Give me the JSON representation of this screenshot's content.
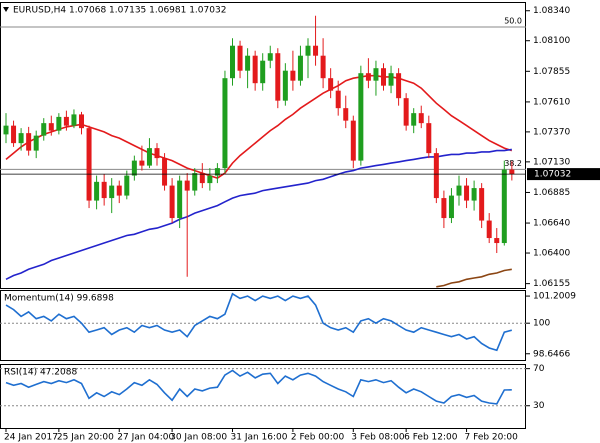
{
  "chart_data": [
    {
      "type": "candlestick",
      "title": "EURUSD,H4 1.07068 1.07135 1.06981 1.07032",
      "categories": [
        "24 Jan 2017",
        null,
        null,
        null,
        null,
        null,
        null,
        "25 Jan 20:00",
        null,
        null,
        null,
        null,
        null,
        null,
        null,
        "27 Jan 04:00",
        null,
        null,
        null,
        null,
        null,
        null,
        "30 Jan 08:00",
        null,
        null,
        null,
        null,
        null,
        null,
        null,
        "31 Jan 16:00",
        null,
        null,
        null,
        null,
        null,
        null,
        null,
        "2 Feb 00:00",
        null,
        null,
        null,
        null,
        null,
        null,
        null,
        "3 Feb 08:00",
        null,
        null,
        null,
        null,
        null,
        null,
        "6 Feb 12:00",
        null,
        null,
        null,
        null,
        null,
        null,
        null,
        "7 Feb 20:00",
        null,
        null,
        null,
        null,
        null,
        null
      ],
      "open": [
        1.0735,
        1.0742,
        1.0728,
        1.0736,
        1.0722,
        1.0734,
        1.0744,
        1.0738,
        1.0749,
        1.0742,
        1.0751,
        1.074,
        1.0682,
        1.0697,
        1.0684,
        1.0694,
        1.0686,
        1.0702,
        1.0714,
        1.071,
        1.0724,
        1.0716,
        1.0694,
        1.0668,
        1.0698,
        1.069,
        1.0704,
        1.0696,
        1.0702,
        1.0708,
        1.078,
        1.0806,
        1.0786,
        1.0798,
        1.0776,
        1.0794,
        1.08,
        1.0762,
        1.0786,
        1.0778,
        1.0798,
        1.0806,
        1.0798,
        1.078,
        1.077,
        1.0756,
        1.0746,
        1.0714,
        1.0784,
        1.0778,
        1.0788,
        1.0774,
        1.0784,
        1.0764,
        1.0742,
        1.0752,
        1.0744,
        1.072,
        1.0684,
        1.0668,
        1.0686,
        1.0694,
        1.0682,
        1.0692,
        1.0666,
        1.0652,
        1.0648,
        1.07068
      ],
      "high": [
        1.0752,
        1.0746,
        1.074,
        1.0741,
        1.0738,
        1.0748,
        1.075,
        1.0752,
        1.0754,
        1.0755,
        1.0753,
        1.0742,
        1.0702,
        1.0703,
        1.07,
        1.0698,
        1.0706,
        1.0718,
        1.0726,
        1.0732,
        1.0728,
        1.072,
        1.07,
        1.0702,
        1.0704,
        1.0708,
        1.0712,
        1.0708,
        1.0712,
        1.0786,
        1.0812,
        1.081,
        1.0804,
        1.0802,
        1.08,
        1.0806,
        1.0804,
        1.0792,
        1.0802,
        1.0806,
        1.0812,
        1.083,
        1.0812,
        1.0788,
        1.0778,
        1.0766,
        1.075,
        1.079,
        1.0796,
        1.0794,
        1.0792,
        1.079,
        1.0788,
        1.0768,
        1.0756,
        1.0758,
        1.075,
        1.0724,
        1.069,
        1.0692,
        1.0702,
        1.07,
        1.0698,
        1.0696,
        1.0672,
        1.066,
        1.0714,
        1.07135
      ],
      "low": [
        1.0728,
        1.0725,
        1.0722,
        1.0718,
        1.0716,
        1.073,
        1.0734,
        1.0735,
        1.0738,
        1.074,
        1.0735,
        1.0676,
        1.0675,
        1.0678,
        1.0672,
        1.068,
        1.0683,
        1.0698,
        1.0706,
        1.0708,
        1.071,
        1.069,
        1.0664,
        1.066,
        1.0621,
        1.0686,
        1.0692,
        1.069,
        1.0696,
        1.0704,
        1.0774,
        1.078,
        1.0772,
        1.077,
        1.077,
        1.0788,
        1.0756,
        1.0758,
        1.077,
        1.0774,
        1.078,
        1.079,
        1.0772,
        1.0764,
        1.075,
        1.074,
        1.0708,
        1.071,
        1.0772,
        1.0766,
        1.077,
        1.0768,
        1.0758,
        1.0738,
        1.0736,
        1.074,
        1.0716,
        1.068,
        1.066,
        1.0664,
        1.0678,
        1.0676,
        1.0674,
        1.066,
        1.0648,
        1.064,
        1.0646,
        1.06981
      ],
      "close": [
        1.0742,
        1.0728,
        1.0736,
        1.0722,
        1.0734,
        1.0744,
        1.0738,
        1.0749,
        1.0742,
        1.0751,
        1.074,
        1.0682,
        1.0697,
        1.0684,
        1.0694,
        1.0686,
        1.0702,
        1.0714,
        1.071,
        1.0724,
        1.0716,
        1.0694,
        1.0668,
        1.0698,
        1.069,
        1.0704,
        1.0696,
        1.0702,
        1.0708,
        1.078,
        1.0806,
        1.0786,
        1.0798,
        1.0776,
        1.0794,
        1.08,
        1.0762,
        1.0786,
        1.0778,
        1.0798,
        1.0806,
        1.0798,
        1.078,
        1.077,
        1.0756,
        1.0746,
        1.0714,
        1.0784,
        1.0778,
        1.0788,
        1.0774,
        1.0784,
        1.0764,
        1.0742,
        1.0752,
        1.0744,
        1.072,
        1.0684,
        1.0668,
        1.0686,
        1.0694,
        1.0682,
        1.0692,
        1.0666,
        1.0652,
        1.0648,
        1.07068,
        1.07032
      ],
      "up_color": "#1f9e1f",
      "down_color": "#e31a1c",
      "series": [
        {
          "color": "#e31a1c",
          "values": [
            1.0715,
            1.072,
            1.0725,
            1.0729,
            1.0732,
            1.0735,
            1.0737,
            1.0739,
            1.0741,
            1.0742,
            1.0743,
            1.0741,
            1.0739,
            1.0737,
            1.0734,
            1.0732,
            1.0729,
            1.0726,
            1.0723,
            1.072,
            1.0718,
            1.0716,
            1.0714,
            1.0711,
            1.0708,
            1.0706,
            1.0704,
            1.0702,
            1.07,
            1.0704,
            1.0712,
            1.0718,
            1.0723,
            1.0728,
            1.0733,
            1.0738,
            1.0742,
            1.0747,
            1.0751,
            1.0756,
            1.076,
            1.0764,
            1.0768,
            1.0771,
            1.0774,
            1.0778,
            1.078,
            1.0781,
            1.0782,
            1.0782,
            1.0781,
            1.0781,
            1.078,
            1.0778,
            1.0776,
            1.0772,
            1.0766,
            1.076,
            1.0755,
            1.075,
            1.0746,
            1.0742,
            1.0738,
            1.0734,
            1.073,
            1.0727,
            1.0724,
            1.0722
          ]
        },
        {
          "color": "#2323cc",
          "values": [
            1.0619,
            1.0622,
            1.0624,
            1.0627,
            1.0629,
            1.0631,
            1.0634,
            1.0636,
            1.0638,
            1.064,
            1.0642,
            1.0644,
            1.0646,
            1.0648,
            1.065,
            1.0652,
            1.0654,
            1.0655,
            1.0657,
            1.0659,
            1.066,
            1.0662,
            1.0664,
            1.0667,
            1.0669,
            1.0672,
            1.0674,
            1.0676,
            1.0678,
            1.0681,
            1.0684,
            1.0686,
            1.0687,
            1.0688,
            1.069,
            1.0691,
            1.0692,
            1.0693,
            1.0694,
            1.0695,
            1.0696,
            1.0698,
            1.0699,
            1.0701,
            1.0703,
            1.0705,
            1.0706,
            1.0708,
            1.0709,
            1.071,
            1.0711,
            1.0712,
            1.0713,
            1.0714,
            1.0715,
            1.0716,
            1.0717,
            1.0717,
            1.0718,
            1.0719,
            1.0719,
            1.072,
            1.072,
            1.0721,
            1.0721,
            1.0722,
            1.0722,
            1.0723
          ]
        },
        {
          "color": "#8b4513",
          "values": [
            null,
            null,
            null,
            null,
            null,
            null,
            null,
            null,
            null,
            null,
            null,
            null,
            null,
            null,
            null,
            null,
            null,
            null,
            null,
            null,
            null,
            null,
            null,
            null,
            null,
            null,
            null,
            null,
            null,
            null,
            null,
            null,
            null,
            null,
            null,
            null,
            null,
            null,
            null,
            null,
            null,
            null,
            null,
            null,
            null,
            null,
            null,
            null,
            null,
            null,
            null,
            null,
            null,
            null,
            null,
            null,
            null,
            1.0613,
            1.0614,
            1.0616,
            1.0617,
            1.0619,
            1.062,
            1.0621,
            1.0623,
            1.0624,
            1.0626,
            1.0627
          ]
        }
      ],
      "levels": [
        {
          "value": 1.0821,
          "label": "50.0"
        },
        {
          "value": 1.0707,
          "label": "38.2"
        }
      ],
      "last_price": 1.07032,
      "ylim": [
        1.0612,
        1.0841
      ],
      "yticks": [
        {
          "value": 1.0834,
          "label": "1.08340"
        },
        {
          "value": 1.081,
          "label": "1.08100"
        },
        1.07855,
        {
          "value": 1.0761,
          "label": "1.07610"
        },
        {
          "value": 1.0737,
          "label": "1.07370"
        },
        {
          "value": 1.0713,
          "label": "1.07130"
        },
        1.06885,
        {
          "value": 1.0664,
          "label": "1.06640"
        },
        {
          "value": 1.064,
          "label": "1.06400"
        },
        1.06155
      ]
    },
    {
      "type": "line",
      "title": "Momentum(14) 99.6898",
      "series": [
        {
          "color": "#1f6fd0",
          "values": [
            100.8,
            100.6,
            100.3,
            100.5,
            100.2,
            100.3,
            100.1,
            100.4,
            100.2,
            100.3,
            100.0,
            99.6,
            99.7,
            99.8,
            99.5,
            99.7,
            99.8,
            99.6,
            99.9,
            99.8,
            99.9,
            99.7,
            99.6,
            99.7,
            99.4,
            99.9,
            100.1,
            100.3,
            100.2,
            100.4,
            101.3,
            101.1,
            101.2,
            101.0,
            101.2,
            101.1,
            101.2,
            101.0,
            101.2,
            101.1,
            101.2,
            100.8,
            100.0,
            99.8,
            99.7,
            99.8,
            99.6,
            100.1,
            100.2,
            100.0,
            100.2,
            100.1,
            99.9,
            99.7,
            99.6,
            99.8,
            99.7,
            99.6,
            99.5,
            99.4,
            99.5,
            99.3,
            99.4,
            99.1,
            98.9,
            98.8,
            99.6,
            99.6898
          ]
        }
      ],
      "ylim": [
        98.37,
        101.47
      ],
      "yticks": [
        101.2009,
        100,
        98.6466
      ],
      "levels": [
        100
      ]
    },
    {
      "type": "line",
      "title": "RSI(14) 47.2088",
      "series": [
        {
          "color": "#1f6fd0",
          "values": [
            55,
            52,
            54,
            50,
            53,
            56,
            54,
            57,
            55,
            58,
            54,
            38,
            44,
            40,
            45,
            42,
            48,
            55,
            52,
            58,
            53,
            44,
            36,
            48,
            40,
            48,
            46,
            49,
            50,
            63,
            68,
            62,
            66,
            60,
            64,
            65,
            54,
            62,
            58,
            63,
            65,
            62,
            56,
            52,
            48,
            45,
            40,
            58,
            56,
            58,
            55,
            57,
            50,
            44,
            48,
            45,
            40,
            35,
            33,
            40,
            42,
            39,
            41,
            35,
            33,
            32,
            47,
            47.2088
          ]
        }
      ],
      "ylim": [
        6,
        75
      ],
      "yticks": [
        70,
        30
      ],
      "levels": [
        70,
        30
      ]
    }
  ]
}
